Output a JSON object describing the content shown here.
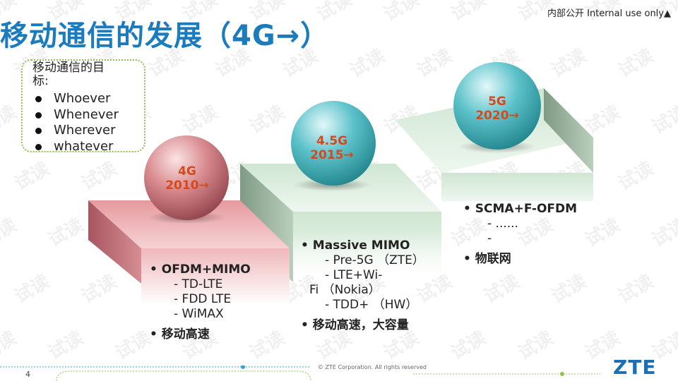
{
  "slide": {
    "title": "移动通信的发展（4G→）",
    "security_note": "内部公开  Internal use only▲",
    "goal_box": {
      "title": "移动通信的目标:",
      "items": [
        "Whoever",
        "Whenever",
        "Wherever",
        "whatever"
      ]
    },
    "stages": [
      {
        "sphere_line1": "4G",
        "sphere_line2": "2010→",
        "head": "OFDM+MIMO",
        "subs": [
          "- TD-LTE",
          "- FDD LTE",
          "- WiMAX"
        ],
        "tail": "移动高速",
        "color": "#c96b72"
      },
      {
        "sphere_line1": "4.5G",
        "sphere_line2": "2015→",
        "head": "Massive MIMO",
        "subs": [
          "- Pre-5G （ZTE）",
          "- LTE+Wi-",
          "Fi （Nokia）",
          "- TDD+ （HW）"
        ],
        "tail": "移动高速，大容量",
        "color": "#3fb6c0"
      },
      {
        "sphere_line1": "5G",
        "sphere_line2": "2020→",
        "head": "SCMA+F-OFDM",
        "subs": [
          "- ......",
          "-"
        ],
        "tail": "物联网",
        "color": "#3fb6c0"
      }
    ],
    "watermark": "试读",
    "page_number": "4",
    "copyright": "© ZTE Corporation. All rights reserved",
    "logo": "ZTE"
  }
}
